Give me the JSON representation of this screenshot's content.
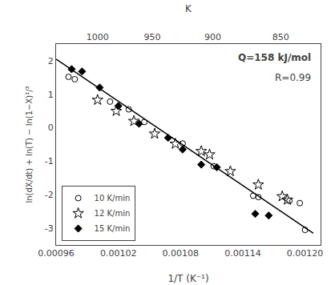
{
  "chart_data": {
    "type": "scatter",
    "title": "",
    "xlabel": "1/T (K⁻¹)",
    "ylabel": "ln(dX/dt) + ln(T) − ln(1−X)²/³",
    "xlim": [
      0.00096,
      0.001215
    ],
    "ylim": [
      -3.5,
      2.5
    ],
    "xticks": [
      0.00096,
      0.00102,
      0.00108,
      0.00114,
      {
        "value": 0.0012,
        "label": "0.00120"
      }
    ],
    "yticks": [
      -3,
      -2,
      -1,
      0,
      1,
      2
    ],
    "x2label": "K",
    "x2lim": [
      0.00096,
      0.001215
    ],
    "x2ticks": [
      {
        "value": 0.001,
        "label": "1000"
      },
      {
        "value": 0.0010526315789473684,
        "label": "950"
      },
      {
        "value": 0.0011111111111111111,
        "label": "900"
      },
      {
        "value": 0.0011764705882352942,
        "label": "850"
      }
    ],
    "annotations": [
      "Q=158 kJ/mol",
      "R=0.99"
    ],
    "grid": false,
    "legend": "lower left",
    "series": [
      {
        "type": "line",
        "color": "black",
        "x": [
          0.00096,
          0.001208
        ],
        "values": [
          2.05,
          -3.15
        ]
      },
      {
        "name": "10 K/min",
        "type": "scatter",
        "marker": "circle-open",
        "color": "black",
        "x": [
          0.000972,
          0.000978,
          0.001012,
          0.00103,
          0.001045,
          0.001082,
          0.001112,
          0.00115,
          0.001155,
          0.001185,
          0.001195,
          0.0012
        ],
        "values": [
          1.52,
          1.45,
          0.78,
          0.55,
          0.17,
          -0.47,
          -1.15,
          -2.03,
          -2.07,
          -2.18,
          -2.25,
          -3.05
        ]
      },
      {
        "name": "12 K/min",
        "type": "scatter",
        "marker": "star-open",
        "color": "black",
        "x": [
          0.001,
          0.001018,
          0.001035,
          0.001055,
          0.001075,
          0.0011,
          0.001108,
          0.001128,
          0.001155,
          0.001178,
          0.001183
        ],
        "values": [
          0.83,
          0.5,
          0.2,
          -0.18,
          -0.48,
          -0.7,
          -0.8,
          -1.3,
          -1.7,
          -2.05,
          -2.15
        ]
      },
      {
        "name": "15 K/min",
        "type": "scatter",
        "marker": "diamond",
        "color": "black",
        "x": [
          0.000975,
          0.000985,
          0.001002,
          0.00102,
          0.00104,
          0.001068,
          0.001082,
          0.0011,
          0.001115,
          0.001152,
          0.001165
        ],
        "values": [
          1.75,
          1.68,
          1.2,
          0.65,
          0.12,
          -0.3,
          -0.65,
          -1.1,
          -1.18,
          -2.57,
          -2.62
        ]
      }
    ]
  }
}
